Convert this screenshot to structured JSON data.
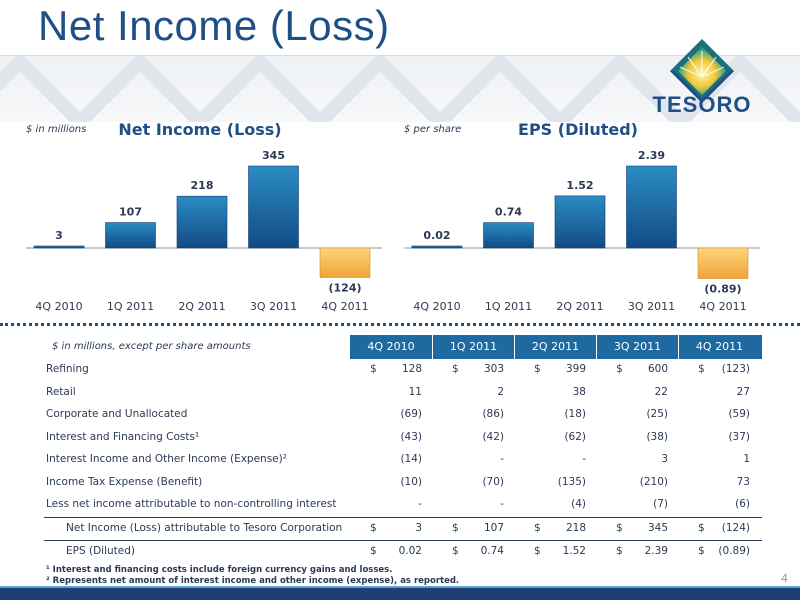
{
  "title": "Net Income (Loss)",
  "logo_text": "TESORO",
  "colors": {
    "positive_bar": "#1f6fa8",
    "negative_bar": "#f2a93b",
    "header_blue": "#1e6aa0",
    "title_blue": "#1e4f86"
  },
  "chart_data": [
    {
      "type": "bar",
      "title": "Net Income (Loss)",
      "unit_label": "$ in millions",
      "categories": [
        "4Q 2010",
        "1Q 2011",
        "2Q 2011",
        "3Q 2011",
        "4Q 2011"
      ],
      "values": [
        3,
        107,
        218,
        345,
        -124
      ],
      "value_labels": [
        "3",
        "107",
        "218",
        "345",
        "(124)"
      ]
    },
    {
      "type": "bar",
      "title": "EPS (Diluted)",
      "unit_label": "$ per share",
      "categories": [
        "4Q 2010",
        "1Q 2011",
        "2Q 2011",
        "3Q 2011",
        "4Q 2011"
      ],
      "values": [
        0.02,
        0.74,
        1.52,
        2.39,
        -0.89
      ],
      "value_labels": [
        "0.02",
        "0.74",
        "1.52",
        "2.39",
        "(0.89)"
      ]
    }
  ],
  "table": {
    "unit_label": "$ in millions, except per share amounts",
    "headers": [
      "4Q 2010",
      "1Q 2011",
      "2Q 2011",
      "3Q 2011",
      "4Q 2011"
    ],
    "rows": [
      {
        "label": "Refining",
        "cur": true,
        "values": [
          "128",
          "303",
          "399",
          "600",
          "(123)"
        ]
      },
      {
        "label": "Retail",
        "cur": false,
        "values": [
          "11",
          "2",
          "38",
          "22",
          "27"
        ]
      },
      {
        "label": "Corporate and Unallocated",
        "cur": false,
        "values": [
          "(69)",
          "(86)",
          "(18)",
          "(25)",
          "(59)"
        ]
      },
      {
        "label": "Interest and Financing Costs¹",
        "cur": false,
        "values": [
          "(43)",
          "(42)",
          "(62)",
          "(38)",
          "(37)"
        ]
      },
      {
        "label": "Interest Income and Other Income (Expense)²",
        "cur": false,
        "values": [
          "(14)",
          "-",
          "-",
          "3",
          "1"
        ]
      },
      {
        "label": "Income Tax Expense (Benefit)",
        "cur": false,
        "values": [
          "(10)",
          "(70)",
          "(135)",
          "(210)",
          "73"
        ]
      },
      {
        "label": "Less net income attributable to non-controlling interest",
        "cur": false,
        "values": [
          "-",
          "-",
          "(4)",
          "(7)",
          "(6)"
        ]
      }
    ],
    "totals": [
      {
        "label": "Net Income (Loss) attributable to Tesoro Corporation",
        "cur": true,
        "values": [
          "3",
          "107",
          "218",
          "345",
          "(124)"
        ]
      },
      {
        "label": "EPS (Diluted)",
        "cur": true,
        "values": [
          "0.02",
          "0.74",
          "1.52",
          "2.39",
          "(0.89)"
        ]
      }
    ],
    "currency_symbol": "$"
  },
  "footnotes": [
    "¹ Interest and financing costs include foreign currency gains and losses.",
    "² Represents net amount of interest income and other income (expense), as reported."
  ],
  "page_number": "4"
}
